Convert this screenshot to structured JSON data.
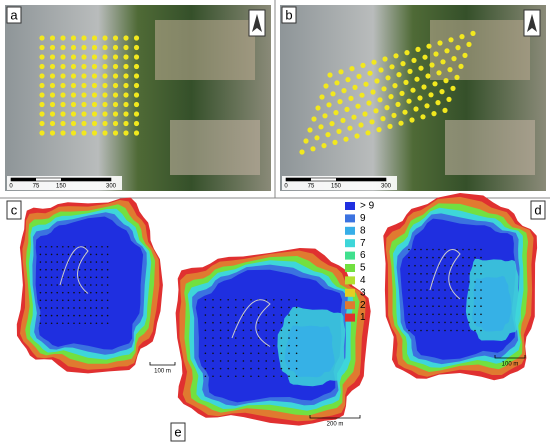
{
  "panels": {
    "a": "a",
    "b": "b",
    "c": "c",
    "d": "d",
    "e": "e"
  },
  "scale_top": [
    "0",
    "75",
    "150",
    "300"
  ],
  "scale_bottom": {
    "c": "100 m",
    "e": "200 m",
    "d": "100 m"
  },
  "legend": [
    {
      "label": "> 9",
      "color": "#1f2fe0"
    },
    {
      "label": "9",
      "color": "#3b72e0"
    },
    {
      "label": "8",
      "color": "#36aee8"
    },
    {
      "label": "7",
      "color": "#3ed6d9"
    },
    {
      "label": "6",
      "color": "#40e08e"
    },
    {
      "label": "5",
      "color": "#72e040"
    },
    {
      "label": "4",
      "color": "#b4e030"
    },
    {
      "label": "3",
      "color": "#e2cf22"
    },
    {
      "label": "2",
      "color": "#e07a30"
    },
    {
      "label": "1",
      "color": "#e03030"
    }
  ]
}
